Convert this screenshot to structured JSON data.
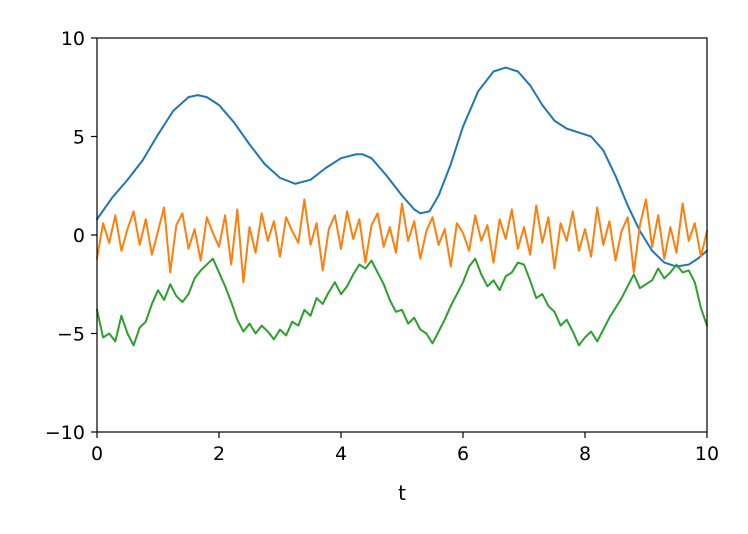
{
  "chart_data": {
    "type": "line",
    "title": "",
    "xlabel": "t",
    "ylabel": "",
    "xlim": [
      0,
      10
    ],
    "ylim": [
      -10,
      10
    ],
    "xticks": [
      0,
      2,
      4,
      6,
      8,
      10
    ],
    "yticks": [
      -10,
      -5,
      0,
      5,
      10
    ],
    "xtick_labels": [
      "0",
      "2",
      "4",
      "6",
      "8",
      "10"
    ],
    "ytick_labels": [
      "−10",
      "−5",
      "0",
      "5",
      "10"
    ],
    "grid": false,
    "legend": "none",
    "series": [
      {
        "color": "#1f77b4",
        "x": [
          0,
          0.25,
          0.5,
          0.75,
          1.0,
          1.25,
          1.5,
          1.65,
          1.8,
          2.0,
          2.25,
          2.5,
          2.75,
          3.0,
          3.25,
          3.5,
          3.75,
          4.0,
          4.25,
          4.35,
          4.5,
          4.75,
          5.0,
          5.2,
          5.3,
          5.45,
          5.6,
          5.8,
          6.0,
          6.25,
          6.5,
          6.7,
          6.9,
          7.1,
          7.3,
          7.5,
          7.7,
          7.9,
          8.1,
          8.3,
          8.5,
          8.7,
          8.9,
          9.1,
          9.3,
          9.5,
          9.7,
          9.85,
          10.0
        ],
        "values": [
          0.8,
          1.9,
          2.8,
          3.8,
          5.1,
          6.3,
          7.0,
          7.1,
          7.0,
          6.6,
          5.7,
          4.6,
          3.6,
          2.9,
          2.6,
          2.8,
          3.4,
          3.9,
          4.1,
          4.1,
          3.9,
          3.0,
          2.0,
          1.3,
          1.1,
          1.2,
          2.0,
          3.6,
          5.5,
          7.3,
          8.3,
          8.5,
          8.3,
          7.6,
          6.6,
          5.8,
          5.4,
          5.2,
          5.0,
          4.3,
          3.0,
          1.5,
          0.2,
          -0.8,
          -1.4,
          -1.6,
          -1.5,
          -1.2,
          -0.8
        ]
      },
      {
        "color": "#ff7f0e",
        "x": [
          0,
          0.1,
          0.2,
          0.3,
          0.4,
          0.5,
          0.6,
          0.7,
          0.8,
          0.9,
          1.0,
          1.1,
          1.2,
          1.3,
          1.4,
          1.5,
          1.6,
          1.7,
          1.8,
          1.9,
          2.0,
          2.1,
          2.2,
          2.3,
          2.4,
          2.5,
          2.6,
          2.7,
          2.8,
          2.9,
          3.0,
          3.1,
          3.2,
          3.3,
          3.4,
          3.5,
          3.6,
          3.7,
          3.8,
          3.9,
          4.0,
          4.1,
          4.2,
          4.3,
          4.4,
          4.5,
          4.6,
          4.7,
          4.8,
          4.9,
          5.0,
          5.1,
          5.2,
          5.3,
          5.4,
          5.5,
          5.6,
          5.7,
          5.8,
          5.9,
          6.0,
          6.1,
          6.2,
          6.3,
          6.4,
          6.5,
          6.6,
          6.7,
          6.8,
          6.9,
          7.0,
          7.1,
          7.2,
          7.3,
          7.4,
          7.5,
          7.6,
          7.7,
          7.8,
          7.9,
          8.0,
          8.1,
          8.2,
          8.3,
          8.4,
          8.5,
          8.6,
          8.7,
          8.8,
          8.9,
          9.0,
          9.1,
          9.2,
          9.3,
          9.4,
          9.5,
          9.6,
          9.7,
          9.8,
          9.9,
          10.0
        ],
        "values": [
          -1.2,
          0.6,
          -0.4,
          1.0,
          -0.8,
          0.3,
          1.2,
          -0.5,
          0.8,
          -1.0,
          0.2,
          1.4,
          -1.9,
          0.5,
          1.1,
          -0.7,
          0.3,
          -1.3,
          0.9,
          0.1,
          -0.6,
          1.0,
          -1.5,
          1.3,
          -2.4,
          0.4,
          -0.9,
          1.1,
          -0.3,
          0.7,
          -1.1,
          0.9,
          0.2,
          -0.4,
          1.8,
          -0.5,
          0.6,
          -1.8,
          0.3,
          1.0,
          -0.7,
          1.2,
          -0.2,
          0.8,
          -1.4,
          0.5,
          1.1,
          -0.6,
          0.4,
          -0.9,
          1.6,
          -0.3,
          0.7,
          -1.2,
          0.2,
          0.9,
          -0.5,
          0.3,
          -1.6,
          0.6,
          0.1,
          -0.8,
          1.0,
          -0.3,
          0.5,
          -1.4,
          0.8,
          -0.2,
          1.3,
          -0.7,
          0.4,
          -1.0,
          1.5,
          -0.4,
          0.9,
          -1.7,
          0.6,
          -0.3,
          1.2,
          -0.8,
          0.3,
          -1.1,
          1.4,
          -0.5,
          0.7,
          -1.3,
          0.2,
          0.9,
          -1.9,
          0.5,
          1.8,
          -0.6,
          1.0,
          -1.2,
          0.4,
          -0.9,
          1.6,
          -0.3,
          0.6,
          -1.1,
          0.2
        ]
      },
      {
        "color": "#2ca02c",
        "x": [
          0,
          0.1,
          0.2,
          0.3,
          0.4,
          0.5,
          0.6,
          0.7,
          0.8,
          0.9,
          1.0,
          1.1,
          1.2,
          1.3,
          1.4,
          1.5,
          1.6,
          1.7,
          1.8,
          1.9,
          2.0,
          2.1,
          2.2,
          2.3,
          2.4,
          2.5,
          2.6,
          2.7,
          2.8,
          2.9,
          3.0,
          3.1,
          3.2,
          3.3,
          3.4,
          3.5,
          3.6,
          3.7,
          3.8,
          3.9,
          4.0,
          4.1,
          4.2,
          4.3,
          4.4,
          4.5,
          4.6,
          4.7,
          4.8,
          4.9,
          5.0,
          5.1,
          5.2,
          5.3,
          5.4,
          5.5,
          5.6,
          5.7,
          5.8,
          5.9,
          6.0,
          6.1,
          6.2,
          6.3,
          6.4,
          6.5,
          6.6,
          6.7,
          6.8,
          6.9,
          7.0,
          7.1,
          7.2,
          7.3,
          7.4,
          7.5,
          7.6,
          7.7,
          7.8,
          7.9,
          8.0,
          8.1,
          8.2,
          8.3,
          8.4,
          8.5,
          8.6,
          8.7,
          8.8,
          8.9,
          9.0,
          9.1,
          9.2,
          9.3,
          9.4,
          9.5,
          9.6,
          9.7,
          9.8,
          9.9,
          10.0
        ],
        "values": [
          -3.8,
          -5.2,
          -5.0,
          -5.4,
          -4.1,
          -5.0,
          -5.6,
          -4.7,
          -4.4,
          -3.5,
          -2.8,
          -3.3,
          -2.5,
          -3.1,
          -3.4,
          -3.0,
          -2.2,
          -1.8,
          -1.5,
          -1.2,
          -1.9,
          -2.6,
          -3.4,
          -4.3,
          -4.9,
          -4.5,
          -5.0,
          -4.6,
          -4.9,
          -5.3,
          -4.8,
          -5.1,
          -4.4,
          -4.6,
          -3.8,
          -4.1,
          -3.2,
          -3.5,
          -2.9,
          -2.4,
          -3.0,
          -2.6,
          -2.0,
          -1.5,
          -1.7,
          -1.3,
          -1.9,
          -2.5,
          -3.3,
          -3.9,
          -3.8,
          -4.5,
          -4.2,
          -4.8,
          -5.0,
          -5.5,
          -4.9,
          -4.3,
          -3.6,
          -3.0,
          -2.4,
          -1.6,
          -1.2,
          -2.0,
          -2.6,
          -2.3,
          -2.8,
          -2.1,
          -1.9,
          -1.4,
          -1.5,
          -2.3,
          -3.2,
          -3.0,
          -3.6,
          -3.9,
          -4.6,
          -4.3,
          -4.9,
          -5.6,
          -5.2,
          -4.9,
          -5.4,
          -4.8,
          -4.2,
          -3.7,
          -3.2,
          -2.6,
          -2.0,
          -2.7,
          -2.5,
          -2.3,
          -1.7,
          -2.2,
          -1.9,
          -1.5,
          -1.9,
          -1.8,
          -2.4,
          -3.7,
          -4.6
        ]
      }
    ]
  }
}
